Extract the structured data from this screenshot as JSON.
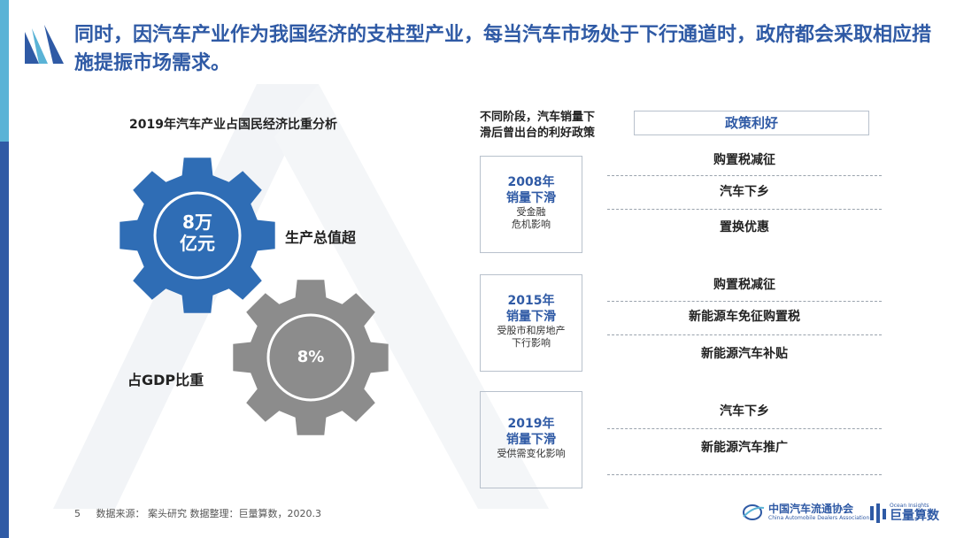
{
  "headline": "同时，因汽车产业作为我国经济的支柱型产业，每当汽车市场处于下行通道时，政府都会采取相应措施提振市场需求。",
  "chart_title": "2019年汽车产业占国民经济比重分析",
  "gear_blue": {
    "value_line1": "8万",
    "value_line2": "亿元",
    "label": "生产总值超",
    "color": "#2f6db5"
  },
  "gear_gray": {
    "value": "8%",
    "label": "占GDP比重",
    "color": "#8c8c8c"
  },
  "policy_header": {
    "line1": "不同阶段，汽车销量下",
    "line2": "滑后曾出台的利好政策"
  },
  "policy_box": "政策利好",
  "periods": [
    {
      "year": "2008年",
      "drop": "销量下滑",
      "cause_line1": "受金融",
      "cause_line2": "危机影响",
      "items": [
        "购置税减征",
        "汽车下乡",
        "置换优惠"
      ]
    },
    {
      "year": "2015年",
      "drop": "销量下滑",
      "cause_line1": "受股市和房地产",
      "cause_line2": "下行影响",
      "items": [
        "购置税减征",
        "新能源车免征购置税",
        "新能源汽车补贴"
      ]
    },
    {
      "year": "2019年",
      "drop": "销量下滑",
      "cause_line1": "受供需变化影响",
      "cause_line2": "",
      "items": [
        "汽车下乡",
        "新能源汽车推广"
      ]
    }
  ],
  "footer": {
    "page": "5",
    "source": "数据来源：  案头研究    数据整理：巨量算数，2020.3"
  },
  "logos": {
    "cada_cn": "中国汽车流通协会",
    "cada_en": "China Automobile Dealers Association",
    "ocean_en_1": "Ocean Insights",
    "ocean_cn": "巨量算数"
  },
  "colors": {
    "primary": "#2f5aa5",
    "accent": "#5ab3d6",
    "gray": "#8c8c8c"
  }
}
